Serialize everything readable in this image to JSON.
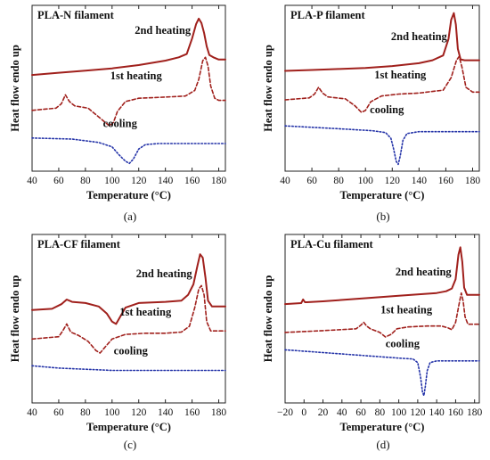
{
  "figure": {
    "type": "multi-panel DSC thermogram",
    "panel_count": 4
  },
  "colors": {
    "second_heating": "#a0201c",
    "first_heating": "#a0201c",
    "cooling": "#2433a8",
    "axis": "#222222",
    "text": "#111111"
  },
  "chart_data": [
    {
      "type": "line",
      "panel": "(a)",
      "title": "PLA-N filament",
      "xlabel": "Temperature (°C)",
      "ylabel": "Heat flow endo up",
      "xlim": [
        40,
        185
      ],
      "xticks": [
        40,
        60,
        80,
        100,
        120,
        140,
        160,
        180
      ],
      "yticks": [],
      "grid": false,
      "series": [
        {
          "name": "2nd heating",
          "style": "solid",
          "x": [
            40,
            60,
            80,
            100,
            120,
            140,
            150,
            156,
            160,
            163,
            165,
            167,
            169,
            171,
            173,
            176,
            180,
            185
          ],
          "y": [
            8.2,
            8.4,
            8.6,
            8.8,
            9.1,
            9.5,
            9.8,
            10.1,
            11.5,
            12.8,
            13.3,
            12.9,
            12.0,
            10.8,
            10.0,
            9.8,
            9.6,
            9.6
          ]
        },
        {
          "name": "1st heating",
          "style": "dashed",
          "x": [
            40,
            58,
            62,
            65,
            68,
            72,
            82,
            92,
            98,
            101,
            104,
            110,
            120,
            140,
            155,
            162,
            165,
            168,
            170,
            172,
            174,
            177,
            180,
            185
          ],
          "y": [
            5.0,
            5.2,
            5.6,
            6.4,
            5.8,
            5.4,
            5.2,
            4.2,
            3.6,
            3.9,
            4.9,
            5.8,
            6.1,
            6.2,
            6.3,
            6.8,
            7.8,
            9.5,
            9.8,
            9.0,
            7.2,
            6.1,
            5.9,
            5.9
          ]
        },
        {
          "name": "cooling",
          "style": "dotted",
          "x": [
            40,
            70,
            90,
            100,
            105,
            110,
            113,
            116,
            120,
            125,
            135,
            150,
            185
          ],
          "y": [
            2.5,
            2.4,
            2.1,
            1.7,
            1.0,
            0.4,
            0.2,
            0.6,
            1.5,
            1.9,
            2.0,
            2.0,
            2.0
          ]
        }
      ],
      "annotations": [
        "2nd heating",
        "1st heating",
        "cooling"
      ],
      "legend": "none"
    },
    {
      "type": "line",
      "panel": "(b)",
      "title": "PLA-P filament",
      "xlabel": "Temperature (°C)",
      "ylabel": "Heat flow endo up",
      "xlim": [
        40,
        185
      ],
      "xticks": [
        40,
        60,
        80,
        100,
        120,
        140,
        160,
        180
      ],
      "yticks": [],
      "grid": false,
      "series": [
        {
          "name": "2nd heating",
          "style": "solid",
          "x": [
            40,
            60,
            80,
            100,
            120,
            140,
            150,
            158,
            162,
            164,
            166,
            167.5,
            169,
            171,
            174,
            180,
            185
          ],
          "y": [
            8.2,
            8.3,
            8.4,
            8.5,
            8.7,
            9.0,
            9.3,
            9.8,
            11.5,
            13.5,
            14.2,
            13.0,
            10.5,
            9.4,
            9.3,
            9.3,
            9.3
          ]
        },
        {
          "name": "1st heating",
          "style": "dashed",
          "x": [
            40,
            58,
            62,
            65,
            68,
            72,
            85,
            92,
            97,
            100,
            104,
            112,
            125,
            140,
            152,
            158,
            164,
            168,
            170,
            172,
            175,
            180,
            185
          ],
          "y": [
            5.2,
            5.4,
            5.8,
            6.5,
            5.9,
            5.5,
            5.3,
            4.6,
            3.9,
            4.1,
            5.0,
            5.6,
            5.8,
            5.9,
            6.1,
            6.2,
            7.5,
            9.3,
            9.7,
            8.6,
            6.5,
            6.0,
            6.0
          ]
        },
        {
          "name": "cooling",
          "style": "dotted",
          "x": [
            40,
            80,
            105,
            115,
            119,
            121,
            123,
            124.5,
            126,
            128,
            131,
            140,
            160,
            185
          ],
          "y": [
            2.5,
            2.2,
            2.0,
            1.8,
            1.2,
            0.1,
            -1.2,
            -1.5,
            -0.6,
            1.0,
            1.7,
            1.9,
            1.9,
            1.9
          ]
        }
      ],
      "annotations": [
        "2nd heating",
        "1st heating",
        "cooling"
      ],
      "legend": "none"
    },
    {
      "type": "line",
      "panel": "(c)",
      "title": "PLA-CF filament",
      "xlabel": "Temperature (°C)",
      "ylabel": "Heat flow endo up",
      "xlim": [
        40,
        185
      ],
      "xticks": [
        40,
        60,
        80,
        100,
        120,
        140,
        160,
        180
      ],
      "yticks": [],
      "grid": false,
      "series": [
        {
          "name": "2nd heating",
          "style": "solid",
          "x": [
            40,
            55,
            62,
            66,
            70,
            80,
            90,
            96,
            100,
            103,
            106,
            110,
            120,
            140,
            152,
            157,
            161,
            164,
            166,
            168,
            170,
            172,
            175,
            180,
            185
          ],
          "y": [
            8.0,
            8.1,
            8.5,
            8.9,
            8.7,
            8.6,
            8.3,
            7.7,
            7.0,
            6.8,
            7.4,
            8.2,
            8.6,
            8.7,
            8.8,
            9.3,
            10.2,
            11.8,
            12.8,
            12.5,
            10.8,
            8.8,
            8.3,
            8.3,
            8.3
          ]
        },
        {
          "name": "1st heating",
          "style": "dashed",
          "x": [
            40,
            60,
            63,
            66,
            69,
            75,
            82,
            88,
            91,
            94,
            100,
            110,
            125,
            140,
            152,
            158,
            162,
            165,
            167,
            169,
            171,
            174,
            180,
            185
          ],
          "y": [
            5.5,
            5.7,
            6.2,
            6.8,
            6.1,
            5.8,
            5.3,
            4.5,
            4.3,
            4.7,
            5.5,
            5.9,
            6.0,
            6.0,
            6.1,
            6.6,
            8.2,
            9.8,
            10.1,
            9.3,
            7.0,
            6.2,
            6.2,
            6.2
          ]
        },
        {
          "name": "cooling",
          "style": "dotted",
          "x": [
            40,
            60,
            80,
            100,
            120,
            140,
            160,
            185
          ],
          "y": [
            3.2,
            3.0,
            2.9,
            2.8,
            2.8,
            2.8,
            2.8,
            2.8
          ]
        }
      ],
      "annotations": [
        "2nd heating",
        "1st heating",
        "cooling"
      ],
      "legend": "none"
    },
    {
      "type": "line",
      "panel": "(d)",
      "title": "PLA-Cu filament",
      "xlabel": "Temperature (°C)",
      "ylabel": "Heat flow endo up",
      "xlim": [
        -20,
        185
      ],
      "xticks": [
        -20,
        0,
        20,
        40,
        60,
        80,
        100,
        120,
        140,
        160,
        180
      ],
      "xticklabels": [
        "−20",
        "0",
        "20",
        "40",
        "60",
        "80",
        "100",
        "120",
        "140",
        "160",
        "180"
      ],
      "yticks": [],
      "grid": false,
      "series": [
        {
          "name": "2nd heating",
          "style": "solid",
          "x": [
            -20,
            -3,
            -1,
            1,
            3,
            20,
            60,
            100,
            140,
            150,
            156,
            160,
            163,
            165,
            167,
            169,
            172,
            177,
            185
          ],
          "y": [
            8.6,
            8.7,
            9.1,
            8.8,
            8.8,
            8.9,
            9.2,
            9.5,
            9.8,
            10.0,
            10.3,
            11.3,
            14.0,
            14.8,
            13.2,
            10.4,
            9.6,
            9.6,
            9.6
          ]
        },
        {
          "name": "1st heating",
          "style": "dashed",
          "x": [
            -20,
            20,
            55,
            60,
            63,
            66,
            70,
            80,
            86,
            92,
            98,
            110,
            130,
            145,
            152,
            156,
            160,
            164,
            166,
            168,
            170,
            173,
            178,
            185
          ],
          "y": [
            5.5,
            5.7,
            5.9,
            6.3,
            6.6,
            6.2,
            5.9,
            5.5,
            5.0,
            5.3,
            5.9,
            6.1,
            6.2,
            6.2,
            6.0,
            5.8,
            6.6,
            8.8,
            9.8,
            8.9,
            7.2,
            6.4,
            6.4,
            6.4
          ]
        },
        {
          "name": "cooling",
          "style": "dotted",
          "x": [
            -20,
            20,
            60,
            100,
            115,
            120,
            123,
            125,
            126.5,
            128,
            130,
            133,
            140,
            160,
            185
          ],
          "y": [
            3.6,
            3.3,
            3.0,
            2.7,
            2.6,
            2.2,
            0.6,
            -1.0,
            -1.4,
            -0.4,
            1.3,
            2.2,
            2.4,
            2.4,
            2.4
          ]
        }
      ],
      "annotations": [
        "2nd heating",
        "1st heating",
        "cooling"
      ],
      "legend": "none"
    }
  ]
}
